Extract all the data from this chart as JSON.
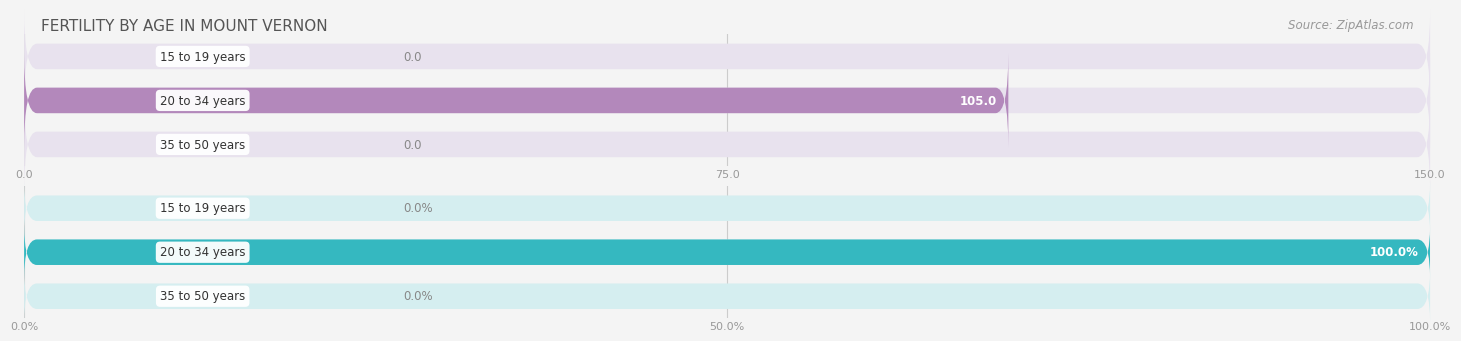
{
  "title": "FERTILITY BY AGE IN MOUNT VERNON",
  "source": "Source: ZipAtlas.com",
  "top_chart": {
    "categories": [
      "15 to 19 years",
      "20 to 34 years",
      "35 to 50 years"
    ],
    "values": [
      0.0,
      105.0,
      0.0
    ],
    "bar_color": "#b388bb",
    "bar_bg_color": "#e8e2ee",
    "xlim": [
      0,
      150
    ],
    "xticks": [
      0.0,
      75.0,
      150.0
    ],
    "xtick_labels": [
      "0.0",
      "75.0",
      "150.0"
    ]
  },
  "bottom_chart": {
    "categories": [
      "15 to 19 years",
      "20 to 34 years",
      "35 to 50 years"
    ],
    "values": [
      0.0,
      100.0,
      0.0
    ],
    "bar_color": "#35b8c0",
    "bar_bg_color": "#d5eef0",
    "xlim": [
      0,
      100
    ],
    "xticks": [
      0.0,
      50.0,
      100.0
    ],
    "xtick_labels": [
      "0.0%",
      "50.0%",
      "100.0%"
    ]
  },
  "background_color": "#f4f4f4",
  "bar_height": 0.58,
  "label_fontsize": 8.5,
  "category_fontsize": 8.5,
  "title_fontsize": 11,
  "source_fontsize": 8.5,
  "value_label_top": [
    "0.0",
    "105.0",
    "0.0"
  ],
  "value_label_bottom": [
    "0.0%",
    "100.0%",
    "0.0%"
  ]
}
